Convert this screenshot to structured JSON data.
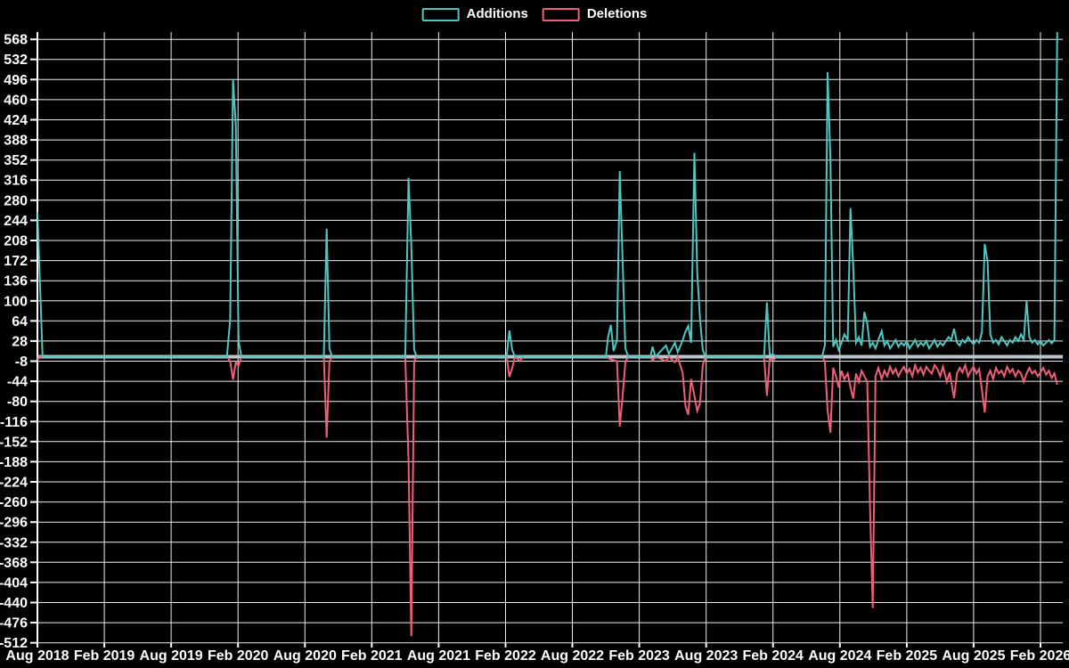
{
  "legend": {
    "items": [
      {
        "label": "Additions",
        "color": "#4dc7c0"
      },
      {
        "label": "Deletions",
        "color": "#f05f78"
      }
    ]
  },
  "chart_data": {
    "type": "line",
    "title": "",
    "background": "#000000",
    "grid": {
      "show": true,
      "color": "#eeeeee"
    },
    "zero_line_color": "#b9c4cd",
    "legend_position": "top-center",
    "x_unit": "months_since_2018-08",
    "x_axis": {
      "start": "Aug 2018",
      "end": "Feb 2026",
      "months_per_tick": 6,
      "tick_labels": [
        "Aug 2018",
        "Feb 2019",
        "Aug 2019",
        "Feb 2020",
        "Aug 2020",
        "Feb 2021",
        "Aug 2021",
        "Feb 2022",
        "Aug 2022",
        "Feb 2023",
        "Aug 2023",
        "Feb 2024",
        "Aug 2024",
        "Feb 2025",
        "Aug 2025",
        "Feb 2026"
      ]
    },
    "y_axis": {
      "max_tick": 568,
      "min_tick": -512,
      "step": 36,
      "ticks": [
        568,
        532,
        496,
        460,
        424,
        388,
        352,
        316,
        280,
        244,
        208,
        172,
        136,
        100,
        64,
        28,
        -8,
        -44,
        -80,
        -116,
        -152,
        -188,
        -224,
        -260,
        -296,
        -332,
        -368,
        -404,
        -440,
        -476,
        -512
      ]
    },
    "series": [
      {
        "name": "Additions",
        "color": "#4dc7c0",
        "points": [
          [
            0,
            259
          ],
          [
            0.23,
            130
          ],
          [
            0.46,
            0
          ],
          [
            17.0,
            0
          ],
          [
            17.3,
            67
          ],
          [
            17.55,
            497
          ],
          [
            17.8,
            413
          ],
          [
            18.05,
            28
          ],
          [
            18.3,
            0
          ],
          [
            25.7,
            0
          ],
          [
            25.95,
            229
          ],
          [
            26.2,
            14
          ],
          [
            26.45,
            0
          ],
          [
            33.0,
            0
          ],
          [
            33.3,
            320
          ],
          [
            33.55,
            199
          ],
          [
            33.8,
            12
          ],
          [
            34.05,
            0
          ],
          [
            42.1,
            0
          ],
          [
            42.35,
            47
          ],
          [
            42.6,
            12
          ],
          [
            42.85,
            0
          ],
          [
            43.3,
            2
          ],
          [
            43.55,
            0
          ],
          [
            51.0,
            0
          ],
          [
            51.2,
            35
          ],
          [
            51.45,
            57
          ],
          [
            51.7,
            10
          ],
          [
            52.0,
            30
          ],
          [
            52.25,
            332
          ],
          [
            52.5,
            177
          ],
          [
            52.75,
            15
          ],
          [
            53.0,
            0
          ],
          [
            55.0,
            0
          ],
          [
            55.2,
            18
          ],
          [
            55.45,
            0
          ],
          [
            56.4,
            20
          ],
          [
            56.65,
            5
          ],
          [
            57.2,
            25
          ],
          [
            57.45,
            8
          ],
          [
            57.9,
            30
          ],
          [
            58.15,
            45
          ],
          [
            58.4,
            55
          ],
          [
            58.65,
            25
          ],
          [
            58.95,
            365
          ],
          [
            59.2,
            150
          ],
          [
            59.45,
            68
          ],
          [
            59.7,
            12
          ],
          [
            59.95,
            0
          ],
          [
            65.2,
            0
          ],
          [
            65.45,
            97
          ],
          [
            65.7,
            4
          ],
          [
            66.1,
            3
          ],
          [
            66.35,
            0
          ],
          [
            70.4,
            0
          ],
          [
            70.65,
            20
          ],
          [
            70.9,
            509
          ],
          [
            71.15,
            352
          ],
          [
            71.4,
            18
          ],
          [
            71.65,
            30
          ],
          [
            71.9,
            12
          ],
          [
            72.15,
            25
          ],
          [
            72.4,
            40
          ],
          [
            72.7,
            30
          ],
          [
            72.95,
            266
          ],
          [
            73.2,
            162
          ],
          [
            73.45,
            25
          ],
          [
            73.7,
            35
          ],
          [
            73.95,
            20
          ],
          [
            74.2,
            80
          ],
          [
            74.45,
            60
          ],
          [
            74.7,
            18
          ],
          [
            74.95,
            25
          ],
          [
            75.2,
            15
          ],
          [
            75.45,
            30
          ],
          [
            75.75,
            46
          ],
          [
            76.0,
            20
          ],
          [
            76.25,
            28
          ],
          [
            76.5,
            15
          ],
          [
            76.75,
            22
          ],
          [
            77.0,
            30
          ],
          [
            77.25,
            18
          ],
          [
            77.5,
            25
          ],
          [
            77.75,
            20
          ],
          [
            78.0,
            28
          ],
          [
            78.25,
            15
          ],
          [
            78.5,
            22
          ],
          [
            78.75,
            30
          ],
          [
            79.0,
            18
          ],
          [
            79.25,
            25
          ],
          [
            79.5,
            20
          ],
          [
            79.75,
            28
          ],
          [
            80.0,
            15
          ],
          [
            80.25,
            22
          ],
          [
            80.5,
            30
          ],
          [
            80.75,
            18
          ],
          [
            81.0,
            25
          ],
          [
            81.25,
            20
          ],
          [
            81.5,
            28
          ],
          [
            81.75,
            35
          ],
          [
            82.0,
            30
          ],
          [
            82.25,
            50
          ],
          [
            82.5,
            25
          ],
          [
            82.75,
            20
          ],
          [
            83.0,
            30
          ],
          [
            83.25,
            25
          ],
          [
            83.5,
            35
          ],
          [
            83.75,
            28
          ],
          [
            84.0,
            22
          ],
          [
            84.25,
            30
          ],
          [
            84.5,
            25
          ],
          [
            84.75,
            45
          ],
          [
            85.0,
            202
          ],
          [
            85.25,
            170
          ],
          [
            85.5,
            40
          ],
          [
            85.75,
            25
          ],
          [
            86.0,
            30
          ],
          [
            86.25,
            22
          ],
          [
            86.5,
            35
          ],
          [
            86.75,
            28
          ],
          [
            87.0,
            20
          ],
          [
            87.25,
            30
          ],
          [
            87.5,
            25
          ],
          [
            87.75,
            35
          ],
          [
            88.0,
            28
          ],
          [
            88.25,
            40
          ],
          [
            88.5,
            30
          ],
          [
            88.75,
            100
          ],
          [
            89.0,
            35
          ],
          [
            89.25,
            25
          ],
          [
            89.5,
            30
          ],
          [
            89.75,
            22
          ],
          [
            90.0,
            28
          ],
          [
            90.25,
            20
          ],
          [
            90.5,
            25
          ],
          [
            90.75,
            30
          ],
          [
            91.0,
            24
          ],
          [
            91.25,
            30
          ],
          [
            91.5,
            582
          ]
        ]
      },
      {
        "name": "Deletions",
        "color": "#f05f78",
        "points": [
          [
            0,
            -6
          ],
          [
            0.25,
            0
          ],
          [
            17.0,
            0
          ],
          [
            17.3,
            -8
          ],
          [
            17.55,
            -41
          ],
          [
            17.8,
            -10
          ],
          [
            18.05,
            -16
          ],
          [
            18.3,
            0
          ],
          [
            25.7,
            0
          ],
          [
            25.95,
            -145
          ],
          [
            26.2,
            -8
          ],
          [
            26.45,
            0
          ],
          [
            33.0,
            0
          ],
          [
            33.3,
            -185
          ],
          [
            33.55,
            -500
          ],
          [
            33.8,
            -8
          ],
          [
            34.05,
            0
          ],
          [
            42.1,
            0
          ],
          [
            42.35,
            -36
          ],
          [
            42.6,
            -20
          ],
          [
            42.85,
            0
          ],
          [
            43.3,
            -8
          ],
          [
            43.55,
            0
          ],
          [
            51.0,
            0
          ],
          [
            51.45,
            -5
          ],
          [
            52.0,
            -8
          ],
          [
            52.25,
            -125
          ],
          [
            52.5,
            -72
          ],
          [
            52.75,
            -10
          ],
          [
            53.0,
            0
          ],
          [
            55.0,
            0
          ],
          [
            55.2,
            -7
          ],
          [
            55.45,
            0
          ],
          [
            56.4,
            -8
          ],
          [
            56.65,
            0
          ],
          [
            57.2,
            -10
          ],
          [
            57.45,
            0
          ],
          [
            57.9,
            -30
          ],
          [
            58.15,
            -89
          ],
          [
            58.4,
            -104
          ],
          [
            58.65,
            -40
          ],
          [
            58.95,
            -70
          ],
          [
            59.2,
            -97
          ],
          [
            59.45,
            -83
          ],
          [
            59.7,
            -15
          ],
          [
            59.95,
            0
          ],
          [
            65.2,
            0
          ],
          [
            65.45,
            -70
          ],
          [
            65.7,
            -5
          ],
          [
            66.1,
            -5
          ],
          [
            66.35,
            0
          ],
          [
            70.4,
            0
          ],
          [
            70.65,
            -8
          ],
          [
            70.9,
            -96
          ],
          [
            71.15,
            -136
          ],
          [
            71.4,
            -20
          ],
          [
            71.65,
            -35
          ],
          [
            71.9,
            -55
          ],
          [
            72.15,
            -25
          ],
          [
            72.4,
            -40
          ],
          [
            72.7,
            -30
          ],
          [
            72.95,
            -55
          ],
          [
            73.2,
            -75
          ],
          [
            73.45,
            -30
          ],
          [
            73.7,
            -45
          ],
          [
            73.95,
            -25
          ],
          [
            74.2,
            -35
          ],
          [
            74.45,
            -45
          ],
          [
            74.7,
            -267
          ],
          [
            74.95,
            -450
          ],
          [
            75.2,
            -35
          ],
          [
            75.45,
            -20
          ],
          [
            75.75,
            -40
          ],
          [
            76.0,
            -25
          ],
          [
            76.25,
            -35
          ],
          [
            76.5,
            -18
          ],
          [
            76.75,
            -30
          ],
          [
            77.0,
            -22
          ],
          [
            77.25,
            -35
          ],
          [
            77.5,
            -25
          ],
          [
            77.75,
            -18
          ],
          [
            78.0,
            -30
          ],
          [
            78.25,
            -22
          ],
          [
            78.5,
            -35
          ],
          [
            78.75,
            -15
          ],
          [
            79.0,
            -28
          ],
          [
            79.25,
            -20
          ],
          [
            79.5,
            -32
          ],
          [
            79.75,
            -18
          ],
          [
            80.0,
            -25
          ],
          [
            80.25,
            -30
          ],
          [
            80.5,
            -15
          ],
          [
            80.75,
            -22
          ],
          [
            81.0,
            -35
          ],
          [
            81.25,
            -18
          ],
          [
            81.6,
            -45
          ],
          [
            81.85,
            -28
          ],
          [
            82.25,
            -74
          ],
          [
            82.5,
            -30
          ],
          [
            82.75,
            -20
          ],
          [
            83.0,
            -28
          ],
          [
            83.25,
            -15
          ],
          [
            83.5,
            -35
          ],
          [
            83.75,
            -25
          ],
          [
            84.0,
            -18
          ],
          [
            84.25,
            -30
          ],
          [
            84.5,
            -22
          ],
          [
            84.75,
            -60
          ],
          [
            85.0,
            -100
          ],
          [
            85.25,
            -35
          ],
          [
            85.5,
            -25
          ],
          [
            85.75,
            -40
          ],
          [
            86.0,
            -20
          ],
          [
            86.25,
            -30
          ],
          [
            86.5,
            -25
          ],
          [
            86.75,
            -35
          ],
          [
            87.0,
            -18
          ],
          [
            87.25,
            -28
          ],
          [
            87.5,
            -22
          ],
          [
            87.75,
            -35
          ],
          [
            88.0,
            -25
          ],
          [
            88.25,
            -30
          ],
          [
            88.5,
            -45
          ],
          [
            88.75,
            -30
          ],
          [
            89.0,
            -20
          ],
          [
            89.25,
            -30
          ],
          [
            89.5,
            -25
          ],
          [
            89.75,
            -35
          ],
          [
            90.0,
            -28
          ],
          [
            90.25,
            -20
          ],
          [
            90.5,
            -32
          ],
          [
            90.75,
            -25
          ],
          [
            91.0,
            -38
          ],
          [
            91.25,
            -30
          ],
          [
            91.5,
            -50
          ]
        ]
      }
    ]
  }
}
